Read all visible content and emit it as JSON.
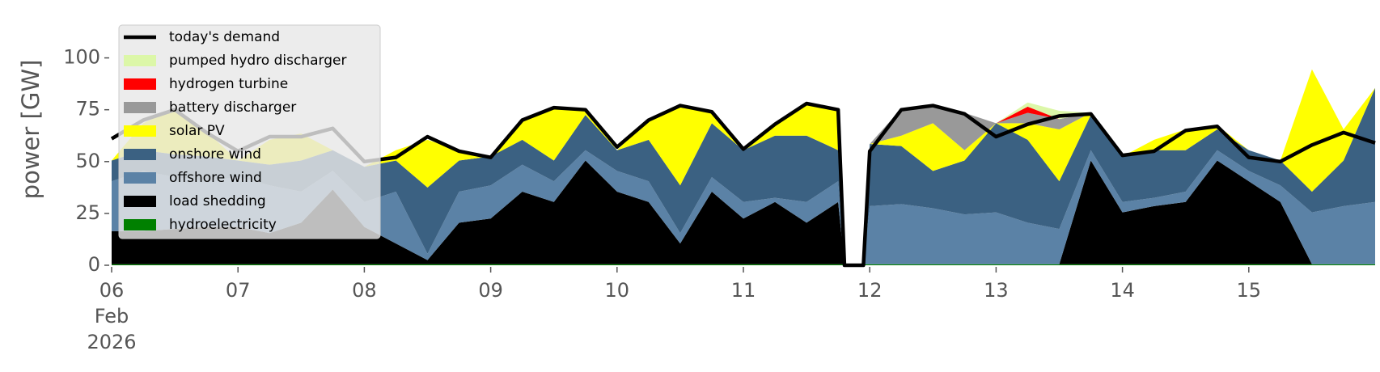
{
  "chart_data": {
    "type": "stacked_area",
    "y_label": "power [GW]",
    "x": [
      6.0,
      6.25,
      6.5,
      6.75,
      7.0,
      7.25,
      7.5,
      7.75,
      8.0,
      8.25,
      8.5,
      8.75,
      9.0,
      9.25,
      9.5,
      9.75,
      10.0,
      10.25,
      10.5,
      10.75,
      11.0,
      11.25,
      11.5,
      11.75,
      11.8,
      11.95,
      12.0,
      12.25,
      12.5,
      12.75,
      13.0,
      13.25,
      13.5,
      13.75,
      14.0,
      14.25,
      14.5,
      14.75,
      15.0,
      15.25,
      15.5,
      15.75,
      16.0
    ],
    "xlim": [
      6,
      16
    ],
    "xticks": [
      {
        "value": 6,
        "label": "06"
      },
      {
        "value": 7,
        "label": "07"
      },
      {
        "value": 8,
        "label": "08"
      },
      {
        "value": 9,
        "label": "09"
      },
      10,
      11,
      12,
      13,
      14,
      15
    ],
    "x_month": "Feb",
    "x_year": "2026",
    "ylim": [
      0,
      117
    ],
    "yticks": [
      0,
      25,
      50,
      75,
      100
    ],
    "legend": "upper left",
    "series": [
      {
        "name": "hydroelectricity",
        "color": "#008000",
        "values": [
          0.5,
          0.5,
          0.5,
          0.5,
          0.5,
          0.5,
          0.5,
          0.5,
          0.5,
          0.5,
          0.5,
          0.5,
          0.5,
          0.5,
          0.5,
          0.5,
          0.5,
          0.5,
          0.5,
          0.5,
          0.5,
          0.5,
          0.5,
          0.5,
          0.5,
          0.5,
          0.5,
          0.5,
          0.5,
          0.5,
          0.5,
          0.5,
          0.5,
          0.5,
          0.5,
          0.5,
          0.5,
          0.5,
          0.5,
          0.5,
          0.5,
          0.5,
          0.5
        ]
      },
      {
        "name": "load shedding",
        "color": "#000000",
        "values": [
          16,
          16,
          17,
          18,
          18,
          15,
          20,
          36,
          18,
          10,
          2,
          20,
          22,
          35,
          30,
          50,
          35,
          30,
          10,
          35,
          22,
          30,
          20,
          30,
          0,
          0,
          0,
          0,
          0,
          0,
          0,
          0,
          0,
          50,
          25,
          28,
          30,
          50,
          40,
          30,
          0,
          0,
          0
        ]
      },
      {
        "name": "offshore wind",
        "color": "#5b82a6",
        "values": [
          24,
          29,
          25,
          22,
          24,
          23,
          15,
          9,
          12,
          25,
          3,
          15,
          16,
          13,
          10,
          5,
          10,
          10,
          5,
          7,
          8,
          2,
          10,
          10,
          0,
          0,
          28,
          29,
          27,
          24,
          25,
          20,
          17,
          5,
          5,
          4,
          5,
          5,
          5,
          8,
          25,
          28,
          30
        ]
      },
      {
        "name": "onshore wind",
        "color": "#3b6182",
        "values": [
          10,
          10,
          11,
          12,
          8,
          10,
          15,
          10,
          17,
          15,
          32,
          15,
          14,
          12,
          10,
          17,
          10,
          20,
          23,
          26,
          25,
          30,
          32,
          15,
          0,
          0,
          30,
          28,
          18,
          26,
          43,
          40,
          23,
          17,
          22,
          23,
          20,
          10,
          10,
          12,
          10,
          22,
          55
        ]
      },
      {
        "name": "solar PV",
        "color": "#ffff00",
        "values": [
          0,
          13,
          22,
          12,
          0,
          12,
          13,
          0,
          0,
          5,
          23,
          5,
          0,
          10,
          26,
          3,
          0,
          10,
          39,
          6,
          0,
          6,
          15,
          20,
          0,
          0,
          0,
          5,
          23,
          5,
          0,
          8,
          25,
          1,
          0,
          5,
          10,
          2,
          0,
          0,
          59,
          15,
          0
        ]
      },
      {
        "name": "battery discharger",
        "color": "#999999",
        "values": [
          0,
          0,
          0,
          0,
          0,
          0,
          0,
          0,
          0,
          0,
          0,
          0,
          0,
          0,
          0,
          0,
          0,
          0,
          0,
          0,
          0,
          0,
          0,
          0,
          0,
          0,
          0,
          13,
          9,
          18,
          0,
          5,
          5,
          0,
          0,
          0,
          0,
          0,
          0,
          0,
          0,
          0,
          0
        ]
      },
      {
        "name": "hydrogen turbine",
        "color": "#ff0000",
        "values": [
          0,
          0,
          0,
          0,
          0,
          0,
          0,
          0,
          0,
          0,
          0,
          0,
          0,
          0,
          0,
          0,
          0,
          0,
          0,
          0,
          0,
          0,
          0,
          0,
          0,
          0,
          0,
          0,
          0,
          0,
          0,
          3,
          0,
          0,
          0,
          0,
          0,
          0,
          0,
          0,
          0,
          0,
          0
        ]
      },
      {
        "name": "pumped hydro discharger",
        "color": "#dcf7a8",
        "values": [
          0,
          0,
          0,
          0,
          0,
          0,
          0,
          0,
          0,
          0,
          0,
          0,
          0,
          0,
          0,
          0,
          0,
          0,
          0,
          0,
          0,
          0,
          0,
          0,
          0,
          0,
          0,
          0,
          0,
          0,
          0,
          2,
          4,
          0,
          0,
          0,
          0,
          0,
          0,
          0,
          0,
          0,
          0
        ]
      }
    ],
    "line": {
      "name": "today's demand",
      "color": "#000000",
      "values": [
        61,
        70,
        75,
        64,
        55,
        62,
        62,
        66,
        50,
        52,
        62,
        55,
        52,
        70,
        76,
        75,
        57,
        70,
        77,
        74,
        56,
        68,
        78,
        75,
        0,
        0,
        55,
        75,
        77,
        73,
        62,
        68,
        72,
        73,
        53,
        55,
        65,
        67,
        52,
        50,
        58,
        64,
        59
      ]
    }
  }
}
